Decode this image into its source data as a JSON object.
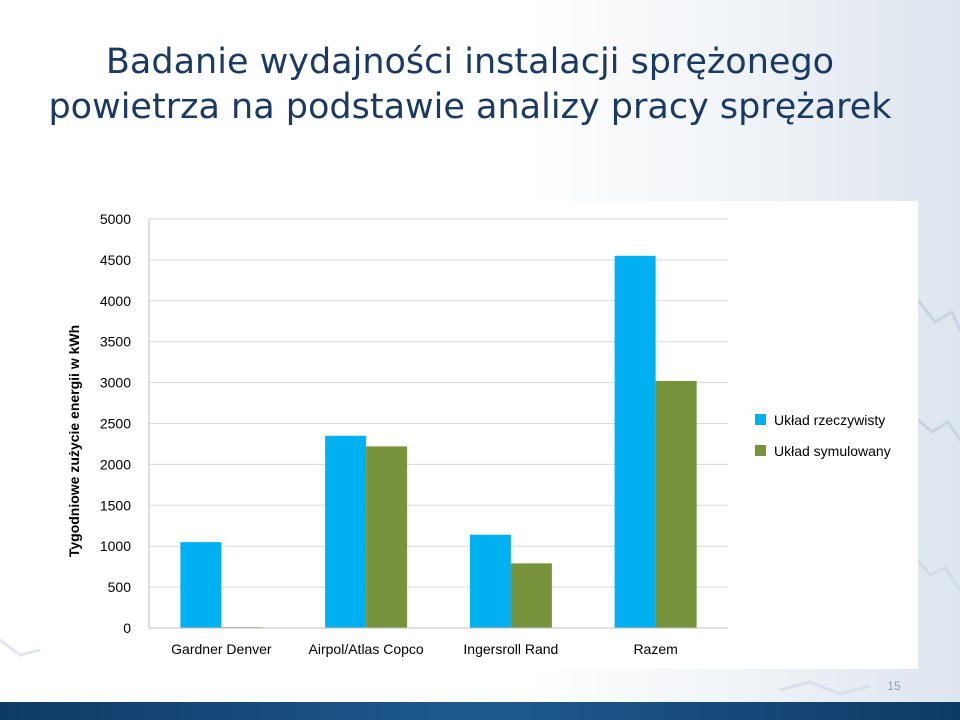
{
  "slide": {
    "title_line1": "Badanie wydajności instalacji sprężonego",
    "title_line2": "powietrza na podstawie analizy pracy sprężarek",
    "page_number": "15"
  },
  "colors": {
    "title": "#1b3a63",
    "series_real": "#00b0f0",
    "series_sim": "#77933c",
    "footer": "#1f5a8f"
  },
  "chart_data": {
    "type": "bar",
    "title": "",
    "xlabel": "",
    "ylabel": "Tygodniowe zużycie energii w kWh",
    "categories": [
      "Gardner Denver",
      "Airpol/Atlas Copco",
      "Ingersroll Rand",
      "Razem"
    ],
    "series": [
      {
        "name": "Układ rzeczywisty",
        "color": "#00b0f0",
        "values": [
          1050,
          2350,
          1140,
          4550
        ]
      },
      {
        "name": "Układ symulowany",
        "color": "#77933c",
        "values": [
          10,
          2220,
          790,
          3020
        ]
      }
    ],
    "ylim": [
      0,
      5000
    ],
    "yticks": [
      0,
      500,
      1000,
      1500,
      2000,
      2500,
      3000,
      3500,
      4000,
      4500,
      5000
    ],
    "grid": true,
    "legend_position": "right"
  }
}
